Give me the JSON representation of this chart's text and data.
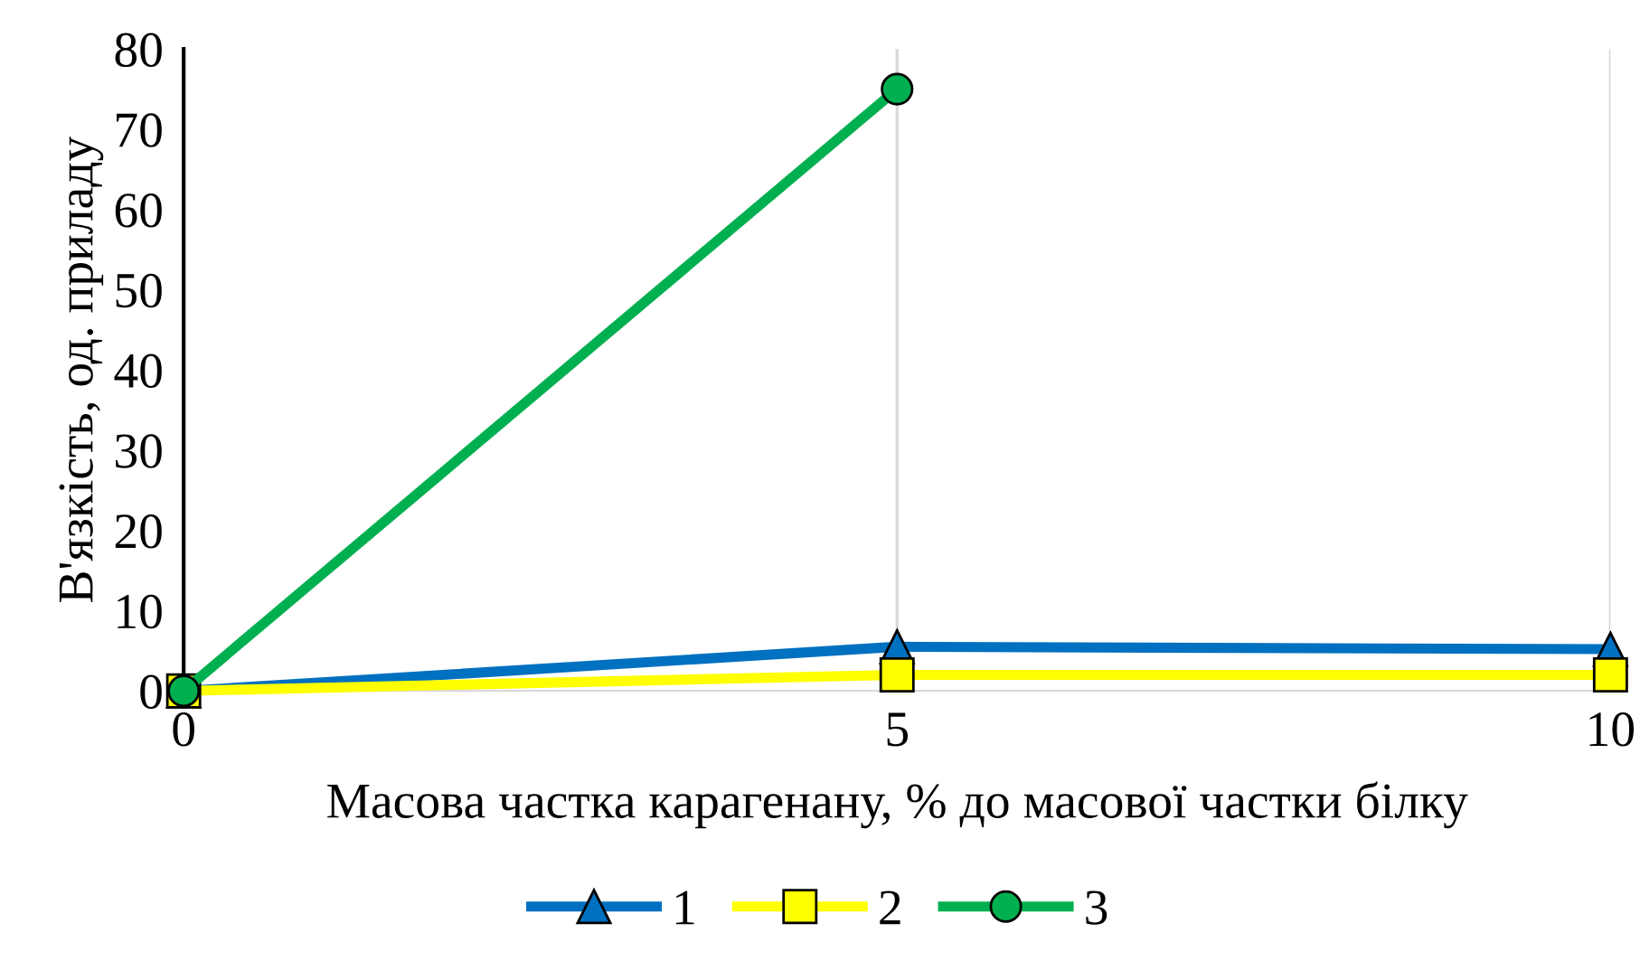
{
  "chart_data": {
    "type": "line",
    "xlabel": "Масова частка карагенану, % до масової частки білку",
    "ylabel": "В'язкість, од. приладу",
    "x": [
      0,
      5,
      10
    ],
    "xlim": [
      0,
      10
    ],
    "xticks": [
      0,
      5,
      10
    ],
    "ylim": [
      0,
      80
    ],
    "yticks": [
      0,
      10,
      20,
      30,
      40,
      50,
      60,
      70,
      80
    ],
    "grid": "x",
    "legend": "bottom",
    "series": [
      {
        "name": "1",
        "color": "#0070c0",
        "marker": "triangle",
        "values": [
          0,
          5.5,
          5.2
        ]
      },
      {
        "name": "2",
        "color": "#ffff00",
        "marker": "square",
        "values": [
          0,
          2,
          2
        ]
      },
      {
        "name": "3",
        "color": "#00b050",
        "marker": "circle",
        "x": [
          0,
          5
        ],
        "values": [
          0,
          75
        ]
      }
    ]
  }
}
